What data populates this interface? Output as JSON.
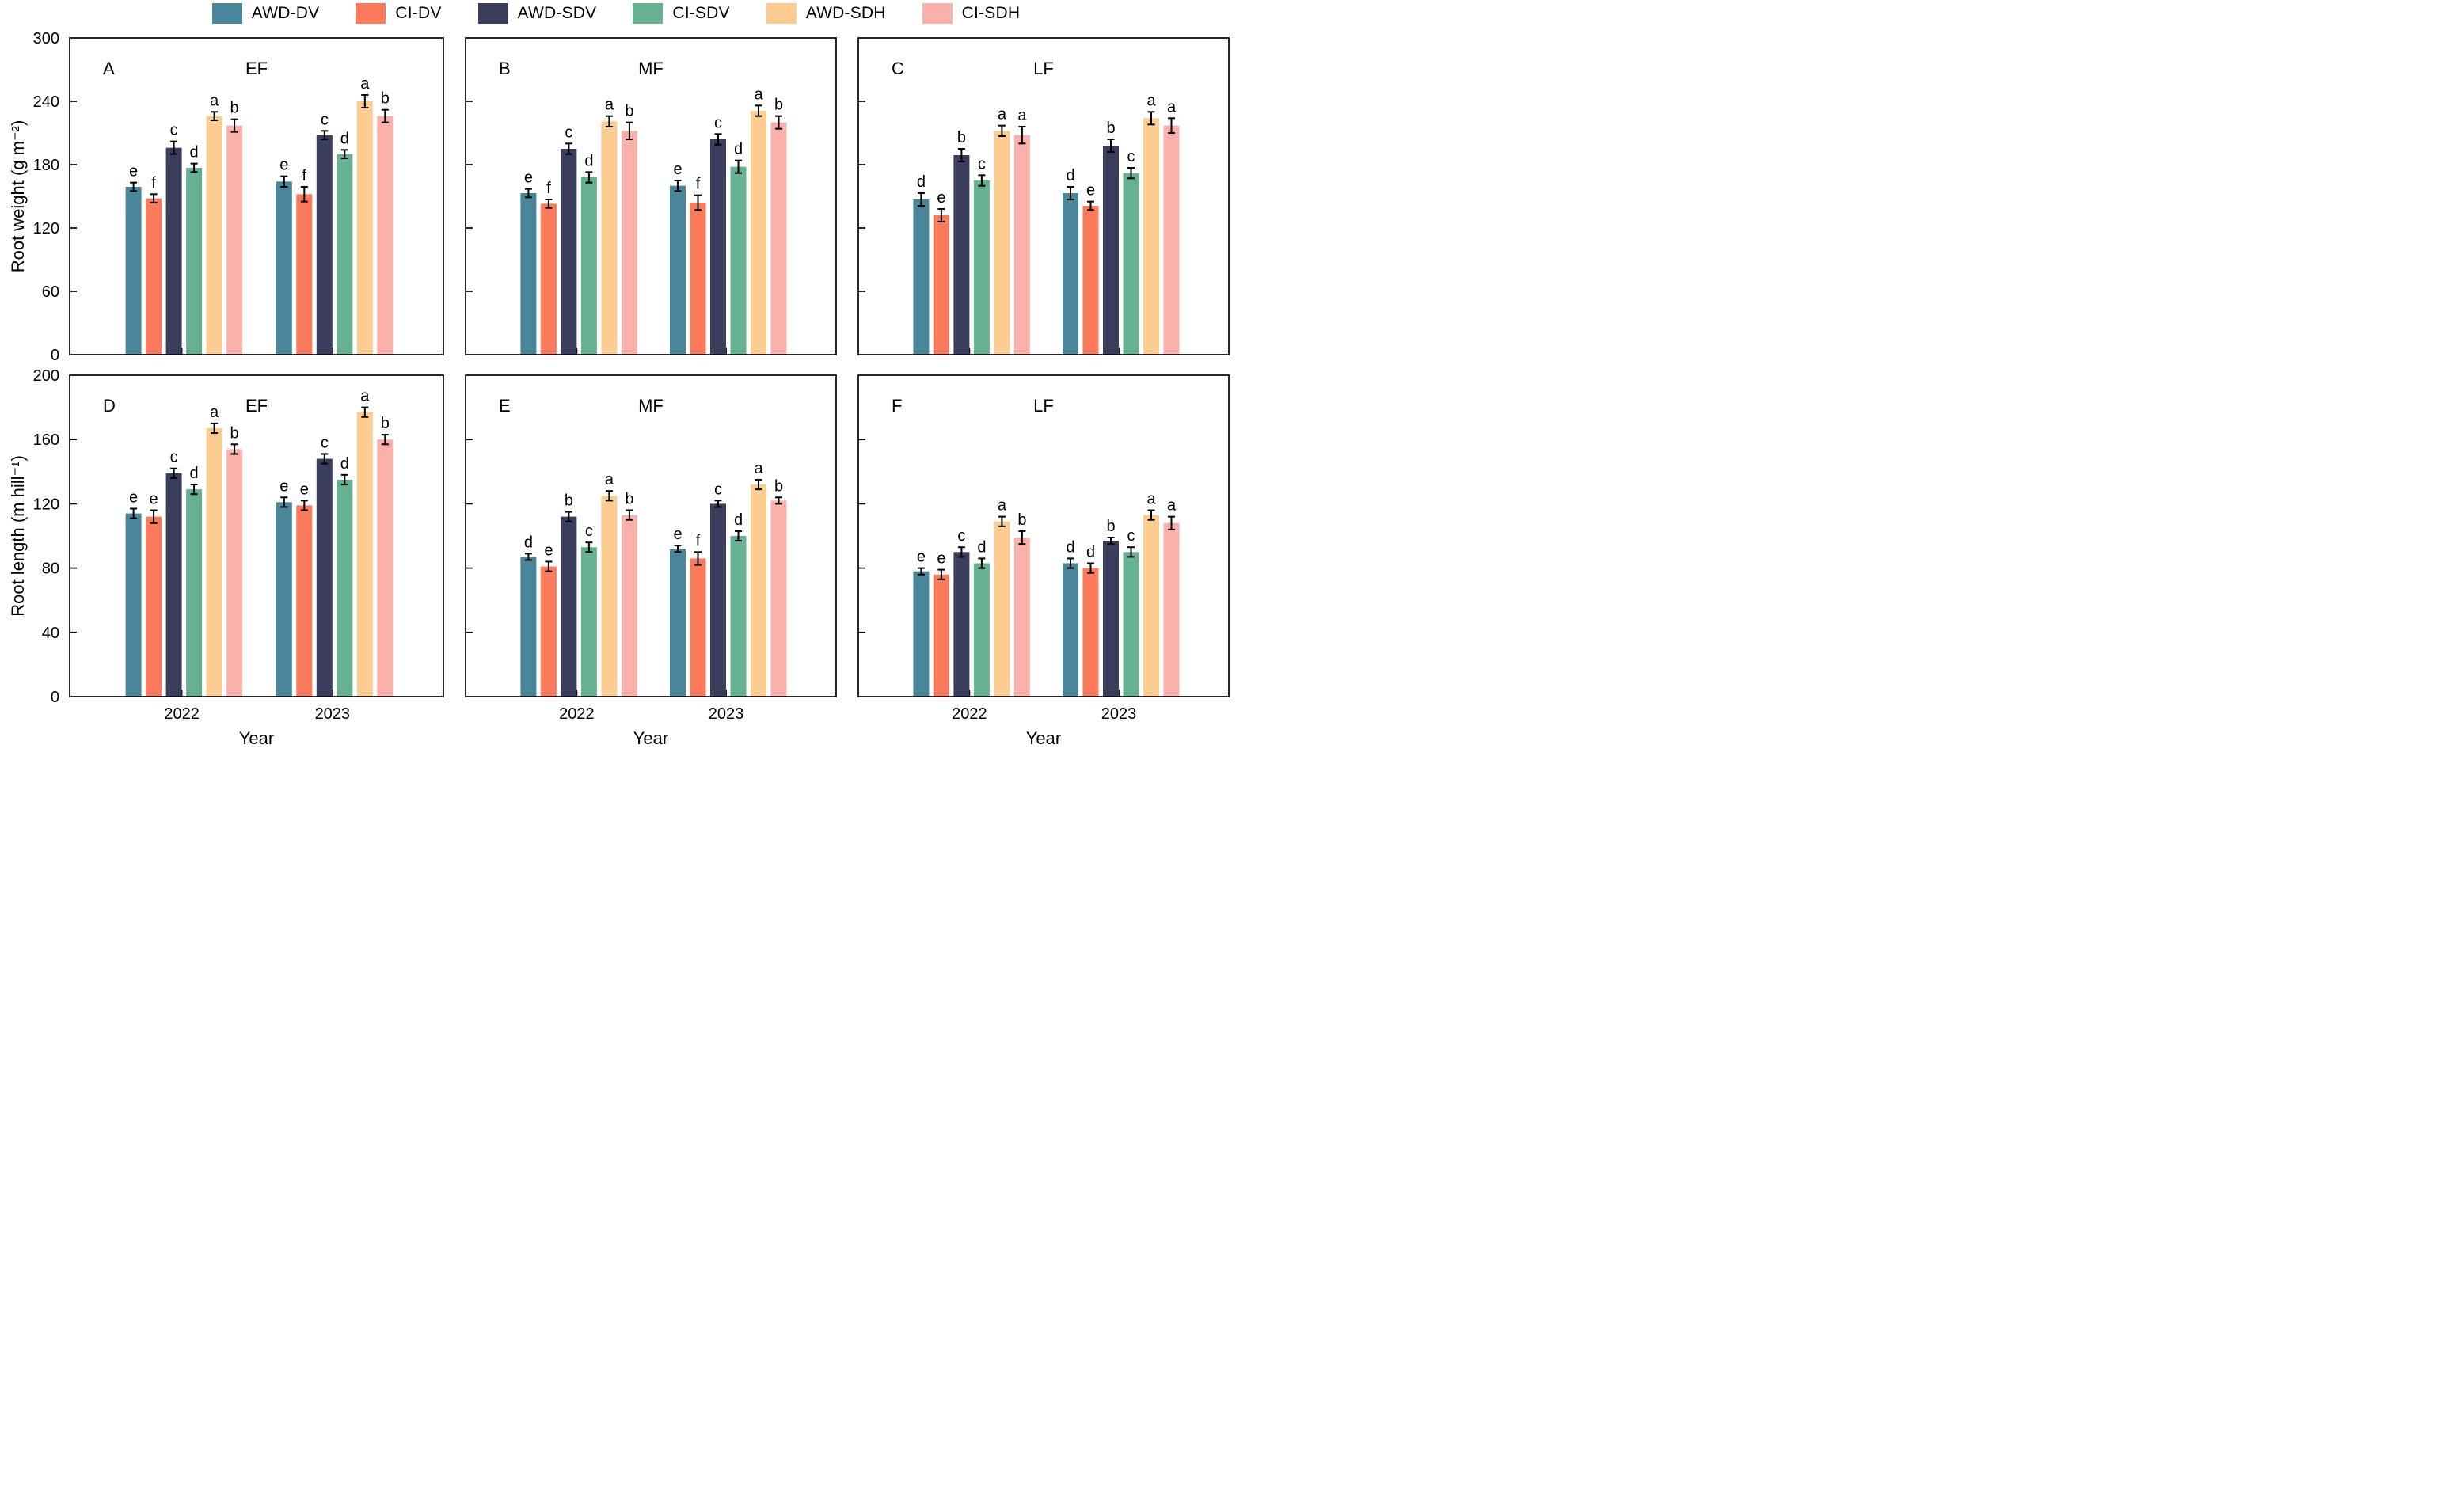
{
  "legend": {
    "items": [
      {
        "label": "AWD-DV",
        "color": "#4A8699"
      },
      {
        "label": "CI-DV",
        "color": "#FB7A5C"
      },
      {
        "label": "AWD-SDV",
        "color": "#3A3D5C"
      },
      {
        "label": "CI-SDV",
        "color": "#66B192"
      },
      {
        "label": "AWD-SDH",
        "color": "#FCCD90"
      },
      {
        "label": "CI-SDH",
        "color": "#FBB1AB"
      }
    ]
  },
  "chart_data": {
    "type": "bar",
    "groups": [
      "2022",
      "2023"
    ],
    "series_names": [
      "AWD-DV",
      "CI-DV",
      "AWD-SDV",
      "CI-SDV",
      "AWD-SDH",
      "CI-SDH"
    ],
    "series_colors": [
      "#4A8699",
      "#FB7A5C",
      "#3A3D5C",
      "#66B192",
      "#FCCD90",
      "#FBB1AB"
    ],
    "xlabel": "Year",
    "error_bar_color": "#000000",
    "legend_position": "top",
    "grid": false,
    "rows": [
      {
        "ylabel": "Root weight (g m⁻²)",
        "ylim": [
          0,
          300
        ],
        "yticks": [
          0,
          60,
          120,
          180,
          240,
          300
        ],
        "panels": [
          {
            "letter": "A",
            "title": "EF",
            "values": {
              "2022": [
                159,
                148,
                196,
                177,
                226,
                217
              ],
              "2023": [
                164,
                152,
                208,
                190,
                240,
                226
              ]
            },
            "errors": {
              "2022": [
                4,
                4,
                6,
                4,
                4,
                6
              ],
              "2023": [
                5,
                7,
                4,
                4,
                6,
                6
              ]
            },
            "letters": {
              "2022": [
                "e",
                "f",
                "c",
                "d",
                "a",
                "b"
              ],
              "2023": [
                "e",
                "f",
                "c",
                "d",
                "a",
                "b"
              ]
            }
          },
          {
            "letter": "B",
            "title": "MF",
            "values": {
              "2022": [
                153,
                143,
                195,
                168,
                221,
                212
              ],
              "2023": [
                160,
                144,
                204,
                178,
                231,
                220
              ]
            },
            "errors": {
              "2022": [
                4,
                4,
                5,
                5,
                5,
                8
              ],
              "2023": [
                5,
                7,
                5,
                6,
                5,
                6
              ]
            },
            "letters": {
              "2022": [
                "e",
                "f",
                "c",
                "d",
                "a",
                "b"
              ],
              "2023": [
                "e",
                "f",
                "c",
                "d",
                "a",
                "b"
              ]
            }
          },
          {
            "letter": "C",
            "title": "LF",
            "values": {
              "2022": [
                147,
                132,
                189,
                165,
                212,
                208
              ],
              "2023": [
                153,
                141,
                198,
                172,
                224,
                217
              ]
            },
            "errors": {
              "2022": [
                6,
                6,
                6,
                5,
                5,
                8
              ],
              "2023": [
                6,
                4,
                6,
                5,
                6,
                7
              ]
            },
            "letters": {
              "2022": [
                "d",
                "e",
                "b",
                "c",
                "a",
                "a"
              ],
              "2023": [
                "d",
                "e",
                "b",
                "c",
                "a",
                "a"
              ]
            }
          }
        ]
      },
      {
        "ylabel": "Root length (m hill⁻¹)",
        "ylim": [
          0,
          200
        ],
        "yticks": [
          0,
          40,
          80,
          120,
          160,
          200
        ],
        "panels": [
          {
            "letter": "D",
            "title": "EF",
            "values": {
              "2022": [
                114,
                112,
                139,
                129,
                167,
                154
              ],
              "2023": [
                121,
                119,
                148,
                135,
                177,
                160
              ]
            },
            "errors": {
              "2022": [
                3,
                4,
                3,
                3,
                3,
                3
              ],
              "2023": [
                3,
                3,
                3,
                3,
                3,
                3
              ]
            },
            "letters": {
              "2022": [
                "e",
                "e",
                "c",
                "d",
                "a",
                "b"
              ],
              "2023": [
                "e",
                "e",
                "c",
                "d",
                "a",
                "b"
              ]
            }
          },
          {
            "letter": "E",
            "title": "MF",
            "values": {
              "2022": [
                87,
                81,
                112,
                93,
                125,
                113
              ],
              "2023": [
                92,
                86,
                120,
                100,
                132,
                122
              ]
            },
            "errors": {
              "2022": [
                2,
                3,
                3,
                3,
                3,
                3
              ],
              "2023": [
                2,
                4,
                2,
                3,
                3,
                2
              ]
            },
            "letters": {
              "2022": [
                "d",
                "e",
                "b",
                "c",
                "a",
                "b"
              ],
              "2023": [
                "e",
                "f",
                "c",
                "d",
                "a",
                "b"
              ]
            }
          },
          {
            "letter": "F",
            "title": "LF",
            "values": {
              "2022": [
                78,
                76,
                90,
                83,
                109,
                99
              ],
              "2023": [
                83,
                80,
                97,
                90,
                113,
                108
              ]
            },
            "errors": {
              "2022": [
                2,
                3,
                3,
                3,
                3,
                4
              ],
              "2023": [
                3,
                3,
                2,
                3,
                3,
                4
              ]
            },
            "letters": {
              "2022": [
                "e",
                "e",
                "c",
                "d",
                "a",
                "b"
              ],
              "2023": [
                "d",
                "d",
                "b",
                "c",
                "a",
                "a"
              ]
            }
          }
        ]
      }
    ]
  }
}
